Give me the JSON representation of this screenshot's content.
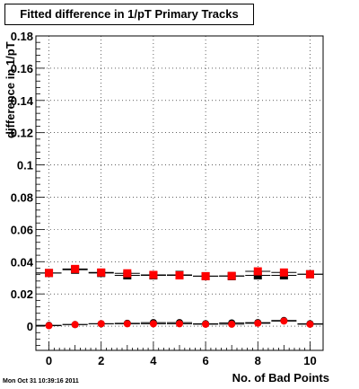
{
  "chart_data": {
    "type": "scatter",
    "title": "Fitted difference in 1/pT Primary Tracks",
    "xlabel": "No. of Bad Points",
    "ylabel": "difference in 1/pT",
    "xlim": [
      -0.5,
      10.5
    ],
    "ylim": [
      -0.015,
      0.18
    ],
    "xticks": [
      0,
      2,
      4,
      6,
      8,
      10
    ],
    "yticks": [
      0,
      0.02,
      0.04,
      0.06,
      0.08,
      0.1,
      0.12,
      0.14,
      0.16,
      0.18
    ],
    "ytick_labels": [
      "0",
      "0.02",
      "0.04",
      "0.06",
      "0.08",
      "0.1",
      "0.12",
      "0.14",
      "0.16",
      "0.18"
    ],
    "grid": true,
    "series": [
      {
        "marker": "square",
        "color": "#000000",
        "x": [
          0,
          1,
          2,
          3,
          4,
          5,
          6,
          7,
          8,
          9,
          10
        ],
        "y": [
          0.033,
          0.035,
          0.033,
          0.0315,
          0.0315,
          0.0318,
          0.031,
          0.031,
          0.0315,
          0.0315,
          0.0322
        ]
      },
      {
        "marker": "square",
        "color": "#ff0000",
        "x": [
          0,
          1,
          2,
          3,
          4,
          5,
          6,
          7,
          8,
          9,
          10
        ],
        "y": [
          0.033,
          0.0355,
          0.0333,
          0.0328,
          0.0318,
          0.0315,
          0.031,
          0.0312,
          0.034,
          0.0333,
          0.0322
        ]
      },
      {
        "marker": "circle",
        "color": "#000000",
        "x": [
          0,
          1,
          2,
          3,
          4,
          5,
          6,
          7,
          8,
          9,
          10
        ],
        "y": [
          0.0005,
          0.001,
          0.0015,
          0.0018,
          0.0022,
          0.0022,
          0.0015,
          0.002,
          0.0022,
          0.0035,
          0.0015
        ]
      },
      {
        "marker": "circle",
        "color": "#ff0000",
        "x": [
          0,
          1,
          2,
          3,
          4,
          5,
          6,
          7,
          8,
          9,
          10
        ],
        "y": [
          0.0003,
          0.001,
          0.0015,
          0.0015,
          0.0015,
          0.0015,
          0.0012,
          0.0012,
          0.0018,
          0.0032,
          0.0012
        ]
      }
    ]
  },
  "footer": {
    "datestamp": "Mon Oct 31 10:39:16 2011"
  }
}
